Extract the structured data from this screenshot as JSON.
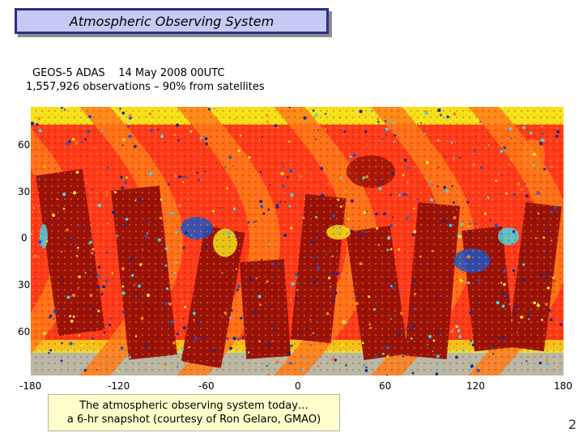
{
  "title": "Atmospheric Observing System",
  "subtitle": {
    "line1": "GEOS-5 ADAS    14 May 2008 00UTC",
    "line2": "1,557,926 observations – 90% from satellites"
  },
  "map": {
    "lat_labels": [
      "60",
      "30",
      "0",
      "30",
      "60"
    ],
    "lon_labels": [
      "-180",
      "-120",
      "-60",
      "0",
      "60",
      "120",
      "180"
    ],
    "colors": {
      "ocean": "#ff3a1a",
      "dark_swath": "#9a1208",
      "orange": "#ff7a1a",
      "yellow": "#f5e21a",
      "blue": "#1e55c8",
      "navy": "#1a2a8a",
      "cyan": "#49d6e8",
      "gray": "#b8b8a8"
    }
  },
  "caption": {
    "line1": "The atmospheric observing system today…",
    "line2": "a 6-hr snapshot (courtesy of Ron Gelaro, GMAO)"
  },
  "page_number": "2"
}
